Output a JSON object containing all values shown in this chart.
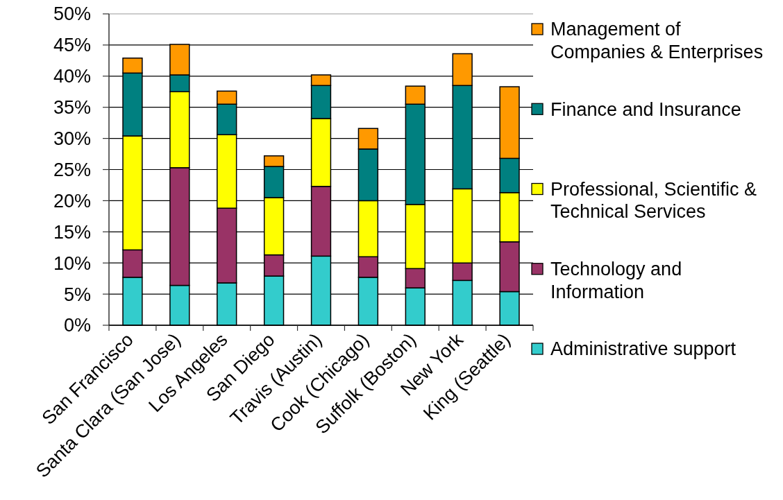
{
  "chart_data": {
    "type": "bar",
    "stacked": true,
    "categories": [
      "San Francisco",
      "Santa Clara (San Jose)",
      "Los Angeles",
      "San Diego",
      "Travis (Austin)",
      "Cook (Chicago)",
      "Suffolk (Boston)",
      "New York",
      "King (Seattle)"
    ],
    "series": [
      {
        "name": "Administrative support",
        "color": "#33cccc",
        "values": [
          7.7,
          6.4,
          6.8,
          7.9,
          11.1,
          7.7,
          6.0,
          7.2,
          5.4
        ]
      },
      {
        "name": "Technology and Information",
        "color": "#993366",
        "values": [
          4.4,
          18.9,
          12.0,
          3.4,
          11.2,
          3.3,
          3.1,
          2.8,
          8.0
        ]
      },
      {
        "name": "Professional, Scientific & Technical Services",
        "color": "#ffff00",
        "values": [
          18.3,
          12.2,
          11.8,
          9.2,
          10.9,
          9.0,
          10.3,
          11.9,
          7.9
        ]
      },
      {
        "name": "Finance and Insurance",
        "color": "#008080",
        "values": [
          10.1,
          2.7,
          4.9,
          5.0,
          5.3,
          8.3,
          16.1,
          16.6,
          5.5
        ]
      },
      {
        "name": "Management of Companies & Enterprises",
        "color": "#ff9900",
        "values": [
          2.4,
          4.9,
          2.1,
          1.7,
          1.7,
          3.3,
          2.9,
          5.1,
          11.5
        ]
      }
    ],
    "ylim": [
      0,
      50
    ],
    "yticks": [
      {
        "value": 0,
        "label": "0%"
      },
      {
        "value": 5,
        "label": "5%"
      },
      {
        "value": 10,
        "label": "10%"
      },
      {
        "value": 15,
        "label": "15%"
      },
      {
        "value": 20,
        "label": "20%"
      },
      {
        "value": 25,
        "label": "25%"
      },
      {
        "value": 30,
        "label": "30%"
      },
      {
        "value": 35,
        "label": "35%"
      },
      {
        "value": 40,
        "label": "40%"
      },
      {
        "value": 45,
        "label": "45%"
      },
      {
        "value": 50,
        "label": "50%"
      }
    ],
    "grid": "y",
    "legend": "right"
  }
}
